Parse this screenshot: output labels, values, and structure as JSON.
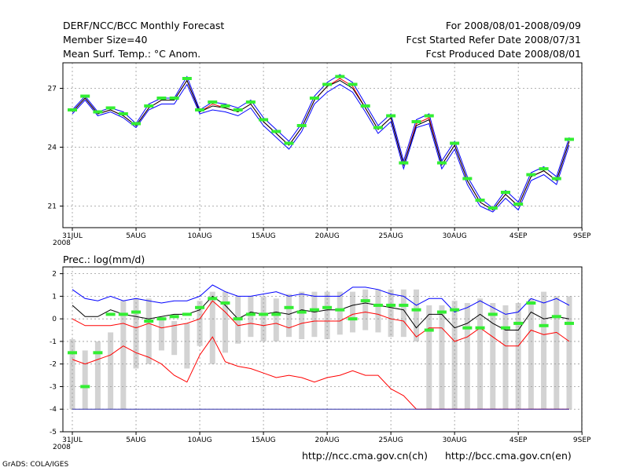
{
  "header": {
    "title": "DERF/NCC/BCC Monthly Forecast",
    "members": "Member Size=40",
    "variable": "Mean Surf. Temp.: °C Anom.",
    "period": "For 2008/08/01-2008/09/09",
    "refer_date": "Fcst Started Refer Date 2008/07/31",
    "produced_date": "Fcst Produced Date 2008/08/01"
  },
  "footer": {
    "url_ncc": "http://ncc.cma.gov.cn(ch)",
    "url_bcc": "http://bcc.cma.gov.cn(en)",
    "grads_credit": "GrADS: COLA/IGES"
  },
  "colors": {
    "mean_line": "#ff0000",
    "spread_line": "#0000ff",
    "control_line": "#000000",
    "marker": "#33ee33",
    "bar": "#d3d3d3",
    "grid": "#999999"
  },
  "chart_data": [
    {
      "type": "line",
      "title": "Mean Surf. Temp.: °C Anom.",
      "x_tick_labels": [
        "31JUL",
        "5AUG",
        "10AUG",
        "15AUG",
        "20AUG",
        "25AUG",
        "30AUG",
        "4SEP",
        "9SEP"
      ],
      "x_tick_index": [
        0,
        5,
        10,
        15,
        20,
        25,
        30,
        35,
        40
      ],
      "year_label": "2008",
      "ylim": [
        19.9,
        28.3
      ],
      "yticks": [
        21,
        24,
        27
      ],
      "grid": true,
      "series": [
        {
          "name": "upper",
          "color": "#0000ff",
          "values": [
            25.9,
            26.6,
            25.8,
            26.0,
            25.8,
            25.2,
            26.2,
            26.5,
            26.5,
            27.6,
            25.9,
            26.3,
            26.2,
            26.0,
            26.4,
            25.5,
            24.9,
            24.3,
            25.2,
            26.6,
            27.3,
            27.7,
            27.3,
            26.2,
            25.1,
            25.7,
            23.3,
            25.4,
            25.7,
            23.3,
            24.3,
            22.5,
            21.4,
            20.9,
            21.8,
            21.2,
            22.7,
            23.0,
            22.5,
            24.5
          ]
        },
        {
          "name": "mean",
          "color": "#ff0000",
          "values": [
            25.8,
            26.5,
            25.7,
            25.9,
            25.6,
            25.1,
            26.0,
            26.4,
            26.4,
            27.4,
            25.8,
            26.2,
            26.0,
            25.8,
            26.2,
            25.3,
            24.7,
            24.1,
            25.0,
            26.4,
            27.1,
            27.5,
            27.1,
            26.0,
            24.9,
            25.5,
            23.1,
            25.2,
            25.5,
            23.1,
            24.1,
            22.3,
            21.2,
            20.8,
            21.6,
            21.0,
            22.5,
            22.8,
            22.3,
            24.3
          ]
        },
        {
          "name": "control",
          "color": "#000000",
          "values": [
            25.8,
            26.5,
            25.7,
            25.9,
            25.6,
            25.1,
            26.0,
            26.4,
            26.4,
            27.4,
            25.8,
            26.1,
            26.0,
            25.8,
            26.2,
            25.3,
            24.7,
            24.1,
            25.0,
            26.4,
            27.1,
            27.4,
            27.0,
            26.0,
            24.9,
            25.5,
            23.1,
            25.1,
            25.4,
            23.1,
            24.1,
            22.3,
            21.2,
            20.8,
            21.6,
            21.0,
            22.5,
            22.8,
            22.3,
            24.3
          ]
        },
        {
          "name": "lower",
          "color": "#0000ff",
          "values": [
            25.7,
            26.4,
            25.6,
            25.8,
            25.5,
            25.0,
            25.9,
            26.2,
            26.2,
            27.2,
            25.7,
            25.9,
            25.8,
            25.6,
            26.0,
            25.1,
            24.5,
            23.9,
            24.8,
            26.2,
            26.8,
            27.2,
            26.8,
            25.8,
            24.7,
            25.3,
            22.9,
            25.0,
            25.2,
            22.9,
            23.9,
            22.1,
            21.0,
            20.7,
            21.4,
            20.8,
            22.3,
            22.6,
            22.1,
            24.1
          ]
        },
        {
          "name": "observed",
          "color": "#33ee33",
          "marker": "dash",
          "values": [
            25.9,
            26.6,
            25.8,
            26.0,
            25.7,
            25.2,
            26.1,
            26.5,
            26.5,
            27.5,
            25.9,
            26.3,
            26.1,
            25.9,
            26.3,
            25.4,
            24.8,
            24.2,
            25.1,
            26.5,
            27.2,
            27.6,
            27.2,
            26.1,
            25.0,
            25.6,
            23.2,
            25.3,
            25.6,
            23.2,
            24.2,
            22.4,
            21.3,
            20.9,
            21.7,
            21.1,
            22.6,
            22.9,
            22.4,
            24.4
          ]
        }
      ]
    },
    {
      "type": "bar",
      "title": "Prec.: log(mm/d)",
      "x_tick_labels": [
        "31JUL",
        "5AUG",
        "10AUG",
        "15AUG",
        "20AUG",
        "25AUG",
        "30AUG",
        "4SEP",
        "9SEP"
      ],
      "x_tick_index": [
        0,
        5,
        10,
        15,
        20,
        25,
        30,
        35,
        40
      ],
      "year_label": "2008",
      "ylim": [
        -5,
        2.3
      ],
      "yticks": [
        -5,
        -4,
        -3,
        -2,
        -1,
        0,
        1,
        2
      ],
      "grid": true,
      "bar_top": [
        -0.9,
        -1.4,
        -1.0,
        -0.6,
        0.8,
        0.9,
        0.9,
        0.0,
        -0.1,
        -0.2,
        0.8,
        1.2,
        1.2,
        1.0,
        1.0,
        1.0,
        0.9,
        1.1,
        1.2,
        1.2,
        1.2,
        1.2,
        1.2,
        1.3,
        1.3,
        1.3,
        1.3,
        1.3,
        0.6,
        0.6,
        0.8,
        0.7,
        0.9,
        0.7,
        0.6,
        0.7,
        0.9,
        1.2,
        1.0,
        1.0
      ],
      "bar_bottom": [
        -4,
        -4,
        -4,
        -4,
        -4,
        -2.2,
        -2.0,
        -1.4,
        -1.6,
        -2.2,
        -1.2,
        -2.0,
        -1.5,
        -1.1,
        -0.8,
        -1.0,
        -1.0,
        -0.8,
        -0.9,
        -0.8,
        -0.9,
        -0.7,
        -0.6,
        -0.5,
        -0.6,
        -0.8,
        -0.8,
        -1.0,
        -4,
        -4,
        -4,
        -4,
        -4,
        -4,
        -4,
        -4,
        -4,
        -4,
        -4,
        -4
      ],
      "series": [
        {
          "name": "upper",
          "color": "#0000ff",
          "values": [
            1.3,
            0.9,
            0.8,
            1.0,
            0.8,
            0.9,
            0.8,
            0.7,
            0.8,
            0.8,
            1.0,
            1.5,
            1.2,
            1.0,
            1.0,
            1.1,
            1.2,
            1.0,
            1.1,
            1.0,
            1.0,
            1.0,
            1.4,
            1.4,
            1.3,
            1.1,
            1.0,
            0.6,
            0.9,
            0.9,
            0.3,
            0.5,
            0.8,
            0.5,
            0.2,
            0.3,
            0.9,
            0.7,
            0.9,
            0.6
          ]
        },
        {
          "name": "control",
          "color": "#000000",
          "values": [
            0.6,
            0.1,
            0.1,
            0.4,
            0.2,
            0.1,
            0.0,
            0.1,
            0.2,
            0.2,
            0.4,
            1.0,
            0.6,
            0.0,
            0.3,
            0.2,
            0.3,
            0.2,
            0.4,
            0.3,
            0.4,
            0.4,
            0.6,
            0.7,
            0.6,
            0.5,
            0.4,
            -0.4,
            0.2,
            0.2,
            -0.4,
            -0.2,
            0.2,
            -0.2,
            -0.5,
            -0.5,
            0.3,
            0.0,
            0.1,
            0.0
          ]
        },
        {
          "name": "mean",
          "color": "#ff0000",
          "values": [
            0.0,
            -0.3,
            -0.3,
            -0.3,
            -0.2,
            -0.4,
            -0.2,
            -0.4,
            -0.3,
            -0.2,
            0.0,
            0.8,
            0.3,
            -0.3,
            -0.2,
            -0.3,
            -0.2,
            -0.4,
            -0.2,
            -0.1,
            -0.1,
            -0.1,
            0.2,
            0.3,
            0.2,
            0.0,
            -0.1,
            -0.8,
            -0.4,
            -0.4,
            -1.0,
            -0.8,
            -0.4,
            -0.8,
            -1.2,
            -1.2,
            -0.5,
            -0.7,
            -0.6,
            -1.0
          ]
        },
        {
          "name": "lower",
          "color": "#ff0000",
          "values": [
            -1.8,
            -2.0,
            -1.8,
            -1.6,
            -1.2,
            -1.5,
            -1.7,
            -2.0,
            -2.5,
            -2.8,
            -1.6,
            -0.8,
            -1.9,
            -2.1,
            -2.2,
            -2.4,
            -2.6,
            -2.5,
            -2.6,
            -2.8,
            -2.6,
            -2.5,
            -2.3,
            -2.5,
            -2.5,
            -3.1,
            -3.4,
            -4.0,
            -4.0,
            -4.0,
            -4.0,
            -4.0,
            -4.0,
            -4.0,
            -4.0,
            -4.0,
            -4.0,
            -4.0,
            -4.0,
            -4.0
          ]
        },
        {
          "name": "observed",
          "color": "#33ee33",
          "marker": "dash",
          "values": [
            -1.5,
            -3.0,
            -1.5,
            0.2,
            0.2,
            0.3,
            -0.1,
            0.0,
            0.1,
            0.2,
            0.5,
            0.9,
            0.7,
            0.0,
            0.2,
            0.2,
            0.2,
            0.5,
            0.3,
            0.4,
            0.5,
            0.4,
            0.0,
            0.8,
            0.6,
            0.6,
            0.6,
            0.4,
            -0.5,
            0.3,
            0.4,
            -0.4,
            -0.4,
            0.2,
            -0.4,
            -0.2,
            0.7,
            -0.3,
            0.1,
            -0.2
          ]
        }
      ]
    }
  ]
}
